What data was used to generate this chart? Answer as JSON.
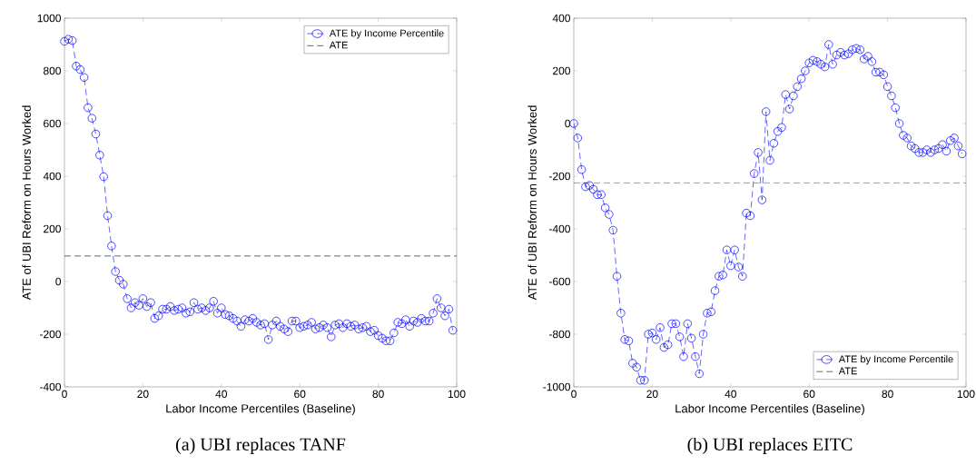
{
  "chart_data": [
    {
      "type": "line",
      "title": "(a) UBI replaces TANF",
      "xlabel": "Labor Income Percentiles (Baseline)",
      "ylabel": "ATE of UBI Reform on Hours Worked",
      "x": [
        0,
        1,
        2,
        3,
        4,
        5,
        6,
        7,
        8,
        9,
        10,
        11,
        12,
        13,
        14,
        15,
        16,
        17,
        18,
        19,
        20,
        21,
        22,
        23,
        24,
        25,
        26,
        27,
        28,
        29,
        30,
        31,
        32,
        33,
        34,
        35,
        36,
        37,
        38,
        39,
        40,
        41,
        42,
        43,
        44,
        45,
        46,
        47,
        48,
        49,
        50,
        51,
        52,
        53,
        54,
        55,
        56,
        57,
        58,
        59,
        60,
        61,
        62,
        63,
        64,
        65,
        66,
        67,
        68,
        69,
        70,
        71,
        72,
        73,
        74,
        75,
        76,
        77,
        78,
        79,
        80,
        81,
        82,
        83,
        84,
        85,
        86,
        87,
        88,
        89,
        90,
        91,
        92,
        93,
        94,
        95,
        96,
        97,
        98,
        99
      ],
      "series": [
        {
          "name": "ATE by Income Percentile",
          "color": "#0000ff",
          "values": [
            912,
            920,
            915,
            818,
            805,
            775,
            660,
            620,
            560,
            480,
            398,
            250,
            135,
            38,
            5,
            -10,
            -65,
            -100,
            -80,
            -90,
            -65,
            -95,
            -80,
            -140,
            -130,
            -105,
            -105,
            -95,
            -110,
            -105,
            -100,
            -120,
            -115,
            -80,
            -105,
            -100,
            -110,
            -100,
            -75,
            -120,
            -100,
            -125,
            -130,
            -140,
            -150,
            -170,
            -145,
            -150,
            -140,
            -155,
            -165,
            -160,
            -220,
            -165,
            -150,
            -170,
            -180,
            -190,
            -150,
            -150,
            -175,
            -170,
            -165,
            -155,
            -180,
            -175,
            -165,
            -175,
            -210,
            -165,
            -160,
            -175,
            -160,
            -170,
            -165,
            -180,
            -175,
            -170,
            -190,
            -185,
            -205,
            -215,
            -225,
            -225,
            -195,
            -155,
            -160,
            -145,
            -170,
            -150,
            -155,
            -140,
            -150,
            -150,
            -120,
            -65,
            -100,
            -130,
            -105,
            -185
          ]
        }
      ],
      "ref_lines": [
        {
          "axis": "y",
          "value": 97,
          "label": "ATE",
          "color": "#000000",
          "line_style": "dashed"
        }
      ],
      "xlim": [
        0,
        100
      ],
      "xticks": [
        0,
        20,
        40,
        60,
        80,
        100
      ],
      "ylim": [
        -400,
        1000
      ],
      "yticks": [
        -400,
        -200,
        0,
        200,
        400,
        600,
        800,
        1000
      ],
      "legend": "top right",
      "marker": "circle",
      "line_style": "dashed"
    },
    {
      "type": "line",
      "title": "(b) UBI replaces EITC",
      "xlabel": "Labor Income Percentiles (Baseline)",
      "ylabel": "ATE of UBI Reform on Hours Worked",
      "x": [
        0,
        1,
        2,
        3,
        4,
        5,
        6,
        7,
        8,
        9,
        10,
        11,
        12,
        13,
        14,
        15,
        16,
        17,
        18,
        19,
        20,
        21,
        22,
        23,
        24,
        25,
        26,
        27,
        28,
        29,
        30,
        31,
        32,
        33,
        34,
        35,
        36,
        37,
        38,
        39,
        40,
        41,
        42,
        43,
        44,
        45,
        46,
        47,
        48,
        49,
        50,
        51,
        52,
        53,
        54,
        55,
        56,
        57,
        58,
        59,
        60,
        61,
        62,
        63,
        64,
        65,
        66,
        67,
        68,
        69,
        70,
        71,
        72,
        73,
        74,
        75,
        76,
        77,
        78,
        79,
        80,
        81,
        82,
        83,
        84,
        85,
        86,
        87,
        88,
        89,
        90,
        91,
        92,
        93,
        94,
        95,
        96,
        97,
        98,
        99
      ],
      "series": [
        {
          "name": "ATE by Income Percentile",
          "color": "#0000ff",
          "values": [
            0,
            -55,
            -175,
            -240,
            -235,
            -250,
            -270,
            -270,
            -320,
            -345,
            -405,
            -580,
            -720,
            -820,
            -825,
            -910,
            -925,
            -975,
            -975,
            -800,
            -795,
            -820,
            -775,
            -850,
            -840,
            -760,
            -760,
            -810,
            -885,
            -760,
            -815,
            -885,
            -950,
            -800,
            -720,
            -715,
            -635,
            -580,
            -575,
            -480,
            -540,
            -480,
            -545,
            -580,
            -340,
            -350,
            -190,
            -110,
            -290,
            45,
            -140,
            -75,
            -30,
            -15,
            110,
            55,
            105,
            140,
            170,
            200,
            230,
            240,
            235,
            225,
            215,
            300,
            225,
            260,
            270,
            260,
            265,
            280,
            285,
            280,
            245,
            255,
            235,
            195,
            195,
            185,
            140,
            105,
            60,
            0,
            -45,
            -55,
            -85,
            -95,
            -110,
            -110,
            -100,
            -110,
            -100,
            -95,
            -80,
            -105,
            -65,
            -55,
            -85,
            -115
          ]
        }
      ],
      "ref_lines": [
        {
          "axis": "y",
          "value": -225,
          "label": "ATE",
          "color": "#000000",
          "line_style": "dashed"
        }
      ],
      "xlim": [
        0,
        100
      ],
      "xticks": [
        0,
        20,
        40,
        60,
        80,
        100
      ],
      "ylim": [
        -1000,
        400
      ],
      "yticks": [
        -1000,
        -800,
        -600,
        -400,
        -200,
        0,
        200,
        400
      ],
      "legend": "bottom right",
      "marker": "circle",
      "line_style": "dashed"
    }
  ]
}
